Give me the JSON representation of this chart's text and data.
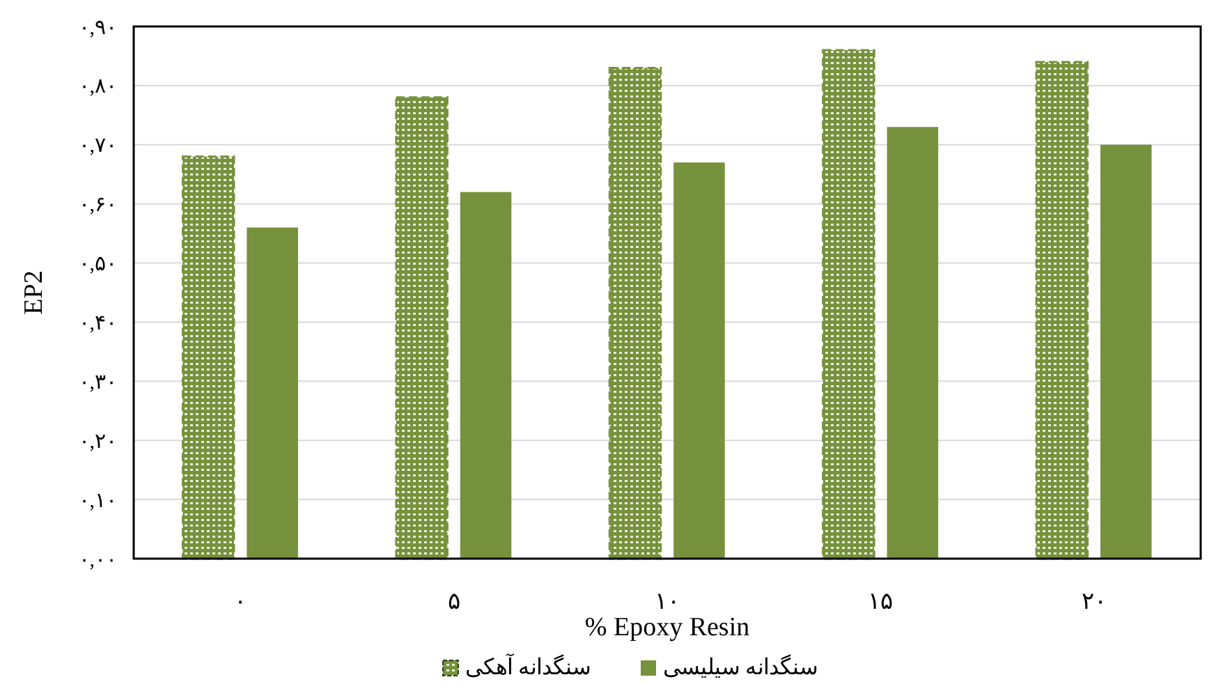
{
  "chart_data": {
    "type": "bar",
    "xlabel": "% Epoxy Resin",
    "ylabel": "EP2",
    "categories": [
      "۰",
      "۵",
      "۱۰",
      "۱۵",
      "۲۰"
    ],
    "series": [
      {
        "name": "سنگدانه آهکی",
        "color": "#76923c",
        "line_style": "dashed",
        "values": [
          0.68,
          0.78,
          0.83,
          0.86,
          0.84
        ]
      },
      {
        "name": "سنگدانه سیلیسی",
        "color": "#76923c",
        "values": [
          0.56,
          0.62,
          0.67,
          0.73,
          0.7
        ]
      }
    ],
    "ylim": [
      0,
      0.9
    ],
    "yticks": [
      {
        "value": 0,
        "label": "۰,۰۰"
      },
      {
        "value": 0.1,
        "label": "۰,۱۰"
      },
      {
        "value": 0.2,
        "label": "۰,۲۰"
      },
      {
        "value": 0.3,
        "label": "۰,۳۰"
      },
      {
        "value": 0.4,
        "label": "۰,۴۰"
      },
      {
        "value": 0.5,
        "label": "۰,۵۰"
      },
      {
        "value": 0.6,
        "label": "۰,۶۰"
      },
      {
        "value": 0.7,
        "label": "۰,۷۰"
      },
      {
        "value": 0.8,
        "label": "۰,۸۰"
      },
      {
        "value": 0.9,
        "label": "۰,۹۰"
      }
    ],
    "grid": "y",
    "legend": "bottom"
  }
}
